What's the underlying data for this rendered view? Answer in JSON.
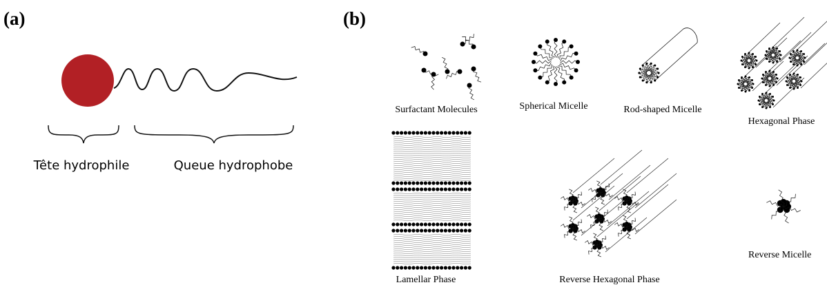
{
  "panel_a": {
    "label": "(a)",
    "head": "Tête hydrophile",
    "tail": "Queue hydrophobe"
  },
  "panel_b": {
    "label": "(b)",
    "phases": [
      "Surfactant Molecules",
      "Spherical Micelle",
      "Rod-shaped Micelle",
      "Hexagonal Phase",
      "Lamellar Phase",
      "Reverse Hexagonal Phase",
      "Reverse Micelle"
    ]
  }
}
